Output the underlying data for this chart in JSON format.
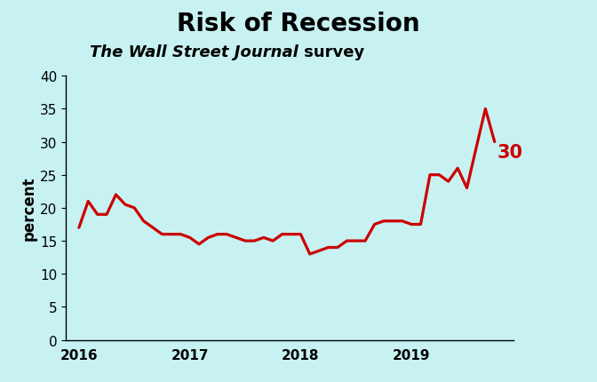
{
  "title": "Risk of Recession",
  "subtitle_italic": "The Wall Street Journal",
  "subtitle_normal": " survey",
  "ylabel": "percent",
  "background_color": "#c8f2f2",
  "line_color": "#cc0000",
  "label_color": "#cc0000",
  "title_fontsize": 20,
  "subtitle_fontsize": 13,
  "ylabel_fontsize": 12,
  "tick_fontsize": 11,
  "ylim": [
    0,
    40
  ],
  "yticks": [
    0,
    5,
    10,
    15,
    20,
    25,
    30,
    35,
    40
  ],
  "end_label": "30",
  "x_values": [
    2016.0,
    2016.083,
    2016.167,
    2016.25,
    2016.333,
    2016.417,
    2016.5,
    2016.583,
    2016.667,
    2016.75,
    2016.833,
    2016.917,
    2017.0,
    2017.083,
    2017.167,
    2017.25,
    2017.333,
    2017.417,
    2017.5,
    2017.583,
    2017.667,
    2017.75,
    2017.833,
    2017.917,
    2018.0,
    2018.083,
    2018.167,
    2018.25,
    2018.333,
    2018.417,
    2018.5,
    2018.583,
    2018.667,
    2018.75,
    2018.833,
    2018.917,
    2019.0,
    2019.083,
    2019.167,
    2019.25,
    2019.333,
    2019.417,
    2019.5,
    2019.583,
    2019.667,
    2019.75
  ],
  "y_values": [
    17,
    21,
    19,
    19,
    22,
    20.5,
    20,
    18,
    17,
    16,
    16,
    16,
    15.5,
    14.5,
    15.5,
    16,
    16,
    15.5,
    15,
    15,
    15.5,
    15,
    16,
    16,
    16,
    13,
    13.5,
    14,
    14,
    15,
    15,
    15,
    17.5,
    18,
    18,
    18,
    17.5,
    17.5,
    25,
    25,
    24,
    26,
    23,
    29,
    35,
    30
  ],
  "xtick_positions": [
    2016.0,
    2017.0,
    2018.0,
    2019.0
  ],
  "xtick_labels": [
    "2016",
    "2017",
    "2018",
    "2019"
  ]
}
